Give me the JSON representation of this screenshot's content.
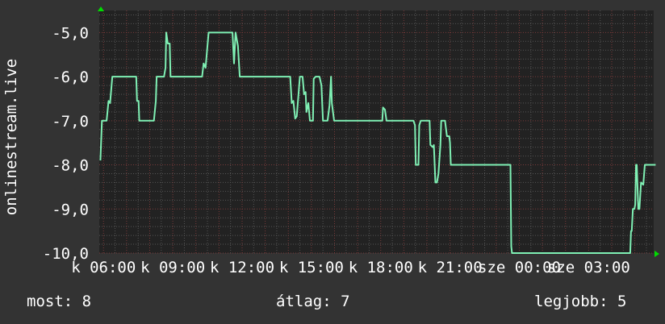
{
  "chart_data": {
    "type": "line",
    "ylabel": "onlinestream.live",
    "ylim": [
      -10.0,
      -4.5
    ],
    "xlim": [
      "05:49",
      "05:49"
    ],
    "y_ticks": [
      {
        "value": -5,
        "label": "-5,0"
      },
      {
        "value": -6,
        "label": "-6,0"
      },
      {
        "value": -7,
        "label": "-7,0"
      },
      {
        "value": -8,
        "label": "-8,0"
      },
      {
        "value": -9,
        "label": "-9,0"
      },
      {
        "value": -10,
        "label": "-10,0"
      }
    ],
    "x_ticks": [
      {
        "time": "06:00",
        "label": "k 06:00"
      },
      {
        "time": "09:00",
        "label": "k 09:00"
      },
      {
        "time": "12:00",
        "label": "k 12:00"
      },
      {
        "time": "15:00",
        "label": "k 15:00"
      },
      {
        "time": "18:00",
        "label": "k 18:00"
      },
      {
        "time": "21:00",
        "label": "k 21:00"
      },
      {
        "time": "00:00",
        "label": "sze 00:00"
      },
      {
        "time": "03:00",
        "label": "sze 03:00"
      }
    ],
    "grid": true,
    "colors": {
      "background": "#333333",
      "plot": "#222222",
      "line": "#7ff0b4",
      "major_grid": "#7a3a3a",
      "minor_grid": "#555555",
      "arrow": "#00dd00"
    },
    "series": [
      {
        "points": [
          [
            "05:52",
            -7.9
          ],
          [
            "05:56",
            -7.0
          ],
          [
            "06:08",
            -7.0
          ],
          [
            "06:13",
            -6.55
          ],
          [
            "06:17",
            -6.6
          ],
          [
            "06:23",
            -6.0
          ],
          [
            "07:25",
            -6.0
          ],
          [
            "07:27",
            -6.55
          ],
          [
            "07:31",
            -6.55
          ],
          [
            "07:33",
            -7.0
          ],
          [
            "08:11",
            -7.0
          ],
          [
            "08:16",
            -6.55
          ],
          [
            "08:18",
            -6.0
          ],
          [
            "08:37",
            -6.0
          ],
          [
            "08:41",
            -5.8
          ],
          [
            "08:43",
            -5.0
          ],
          [
            "08:47",
            -5.25
          ],
          [
            "08:52",
            -5.25
          ],
          [
            "08:54",
            -6.0
          ],
          [
            "10:16",
            -6.0
          ],
          [
            "10:20",
            -5.7
          ],
          [
            "10:25",
            -5.8
          ],
          [
            "10:29",
            -5.4
          ],
          [
            "10:33",
            -5.0
          ],
          [
            "11:35",
            -5.0
          ],
          [
            "11:39",
            -5.7
          ],
          [
            "11:43",
            -5.0
          ],
          [
            "11:49",
            -5.3
          ],
          [
            "11:54",
            -6.0
          ],
          [
            "14:05",
            -6.0
          ],
          [
            "14:09",
            -6.6
          ],
          [
            "14:13",
            -6.55
          ],
          [
            "14:18",
            -6.95
          ],
          [
            "14:22",
            -6.9
          ],
          [
            "14:30",
            -6.0
          ],
          [
            "14:37",
            -6.0
          ],
          [
            "14:41",
            -6.4
          ],
          [
            "14:45",
            -6.35
          ],
          [
            "14:47",
            -6.8
          ],
          [
            "14:52",
            -6.6
          ],
          [
            "14:56",
            -7.0
          ],
          [
            "15:04",
            -7.0
          ],
          [
            "15:06",
            -6.05
          ],
          [
            "15:11",
            -6.0
          ],
          [
            "15:21",
            -6.0
          ],
          [
            "15:26",
            -6.2
          ],
          [
            "15:30",
            -7.0
          ],
          [
            "15:42",
            -7.0
          ],
          [
            "15:47",
            -6.65
          ],
          [
            "15:51",
            -6.0
          ],
          [
            "15:53",
            -6.6
          ],
          [
            "15:59",
            -7.0
          ],
          [
            "18:04",
            -7.0
          ],
          [
            "18:06",
            -6.7
          ],
          [
            "18:11",
            -6.75
          ],
          [
            "18:15",
            -7.0
          ],
          [
            "19:25",
            -7.0
          ],
          [
            "19:29",
            -7.1
          ],
          [
            "19:31",
            -8.0
          ],
          [
            "19:38",
            -8.0
          ],
          [
            "19:40",
            -7.1
          ],
          [
            "19:44",
            -7.0
          ],
          [
            "20:07",
            -7.0
          ],
          [
            "20:09",
            -7.55
          ],
          [
            "20:16",
            -7.6
          ],
          [
            "20:18",
            -7.55
          ],
          [
            "20:22",
            -8.4
          ],
          [
            "20:26",
            -8.4
          ],
          [
            "20:30",
            -8.2
          ],
          [
            "20:35",
            -7.55
          ],
          [
            "20:37",
            -7.0
          ],
          [
            "20:47",
            -7.0
          ],
          [
            "20:52",
            -7.35
          ],
          [
            "20:58",
            -7.35
          ],
          [
            "21:00",
            -7.5
          ],
          [
            "21:02",
            -8.0
          ],
          [
            "23:37",
            -8.0
          ],
          [
            "23:39",
            -9.85
          ],
          [
            "23:41",
            -10.0
          ],
          [
            "04:48",
            -10.0
          ],
          [
            "04:50",
            -9.5
          ],
          [
            "04:52",
            -9.5
          ],
          [
            "04:55",
            -9.0
          ],
          [
            "04:59",
            -9.0
          ],
          [
            "05:01",
            -8.9
          ],
          [
            "05:03",
            -8.0
          ],
          [
            "05:05",
            -8.0
          ],
          [
            "05:09",
            -9.0
          ],
          [
            "05:12",
            -9.0
          ],
          [
            "05:16",
            -8.4
          ],
          [
            "05:22",
            -8.45
          ],
          [
            "05:26",
            -8.0
          ],
          [
            "05:54",
            -8.0
          ]
        ]
      }
    ]
  },
  "legend": {
    "current": "most: 8",
    "average": "átlag: 7",
    "max": "legjobb: 5"
  }
}
